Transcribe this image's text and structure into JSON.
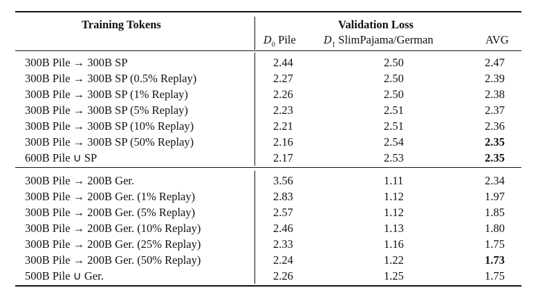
{
  "header": {
    "training_tokens": "Training Tokens",
    "validation_loss": "Validation Loss",
    "columns": [
      {
        "symbol": "D",
        "sub": "0",
        "name": "Pile"
      },
      {
        "symbol": "D",
        "sub": "1",
        "name": "SlimPajama/German"
      },
      {
        "symbol": "",
        "sub": "",
        "name": "AVG"
      }
    ]
  },
  "groups": [
    {
      "rows": [
        {
          "label": "300B Pile → 300B SP",
          "d0": "2.44",
          "d1": "2.50",
          "avg": "2.47",
          "bold": false
        },
        {
          "label": "300B Pile → 300B SP (0.5% Replay)",
          "d0": "2.27",
          "d1": "2.50",
          "avg": "2.39",
          "bold": false
        },
        {
          "label": "300B Pile → 300B SP (1% Replay)",
          "d0": "2.26",
          "d1": "2.50",
          "avg": "2.38",
          "bold": false
        },
        {
          "label": "300B Pile → 300B SP (5% Replay)",
          "d0": "2.23",
          "d1": "2.51",
          "avg": "2.37",
          "bold": false
        },
        {
          "label": "300B Pile → 300B SP (10% Replay)",
          "d0": "2.21",
          "d1": "2.51",
          "avg": "2.36",
          "bold": false
        },
        {
          "label": "300B Pile → 300B SP (50% Replay)",
          "d0": "2.16",
          "d1": "2.54",
          "avg": "2.35",
          "bold": true
        },
        {
          "label": "600B Pile ∪ SP",
          "d0": "2.17",
          "d1": "2.53",
          "avg": "2.35",
          "bold": true
        }
      ]
    },
    {
      "rows": [
        {
          "label": "300B Pile → 200B Ger.",
          "d0": "3.56",
          "d1": "1.11",
          "avg": "2.34",
          "bold": false
        },
        {
          "label": "300B Pile → 200B Ger. (1% Replay)",
          "d0": "2.83",
          "d1": "1.12",
          "avg": "1.97",
          "bold": false
        },
        {
          "label": "300B Pile → 200B Ger. (5% Replay)",
          "d0": "2.57",
          "d1": "1.12",
          "avg": "1.85",
          "bold": false
        },
        {
          "label": "300B Pile → 200B Ger. (10% Replay)",
          "d0": "2.46",
          "d1": "1.13",
          "avg": "1.80",
          "bold": false
        },
        {
          "label": "300B Pile → 200B Ger. (25% Replay)",
          "d0": "2.33",
          "d1": "1.16",
          "avg": "1.75",
          "bold": false
        },
        {
          "label": "300B Pile → 200B Ger. (50% Replay)",
          "d0": "2.24",
          "d1": "1.22",
          "avg": "1.73",
          "bold": true
        },
        {
          "label": "500B Pile ∪ Ger.",
          "d0": "2.26",
          "d1": "1.25",
          "avg": "1.75",
          "bold": false
        }
      ]
    }
  ]
}
